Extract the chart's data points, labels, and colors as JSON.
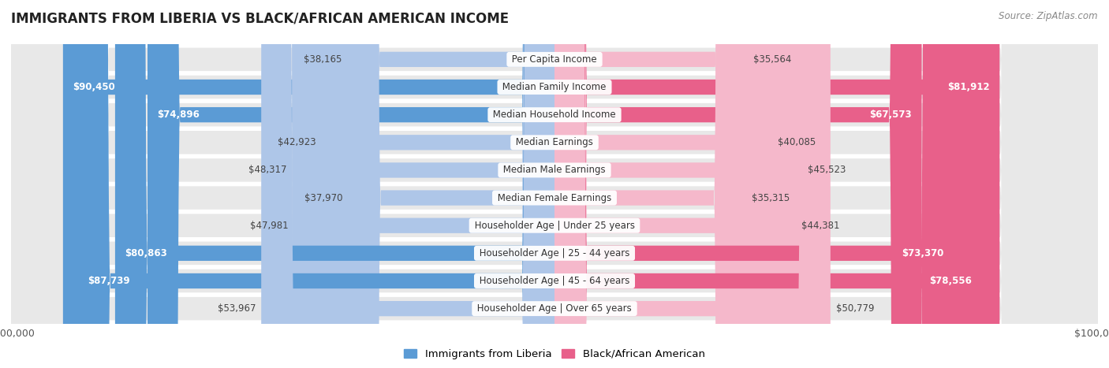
{
  "title": "IMMIGRANTS FROM LIBERIA VS BLACK/AFRICAN AMERICAN INCOME",
  "source": "Source: ZipAtlas.com",
  "categories": [
    "Per Capita Income",
    "Median Family Income",
    "Median Household Income",
    "Median Earnings",
    "Median Male Earnings",
    "Median Female Earnings",
    "Householder Age | Under 25 years",
    "Householder Age | 25 - 44 years",
    "Householder Age | 45 - 64 years",
    "Householder Age | Over 65 years"
  ],
  "liberia_values": [
    38165,
    90450,
    74896,
    42923,
    48317,
    37970,
    47981,
    80863,
    87739,
    53967
  ],
  "black_values": [
    35564,
    81912,
    67573,
    40085,
    45523,
    35315,
    44381,
    73370,
    78556,
    50779
  ],
  "lib_color_light": "#aec6e8",
  "lib_color_dark": "#5b9bd5",
  "blk_color_light": "#f5b8cb",
  "blk_color_dark": "#e8608a",
  "max_value": 100000,
  "full_threshold": 60000,
  "bg_color": "#ffffff",
  "row_bg_even": "#f0f0f0",
  "row_bg_odd": "#e4e4e4",
  "label_fontsize": 8.5,
  "title_fontsize": 12,
  "source_fontsize": 8.5,
  "legend_fontsize": 9.5
}
